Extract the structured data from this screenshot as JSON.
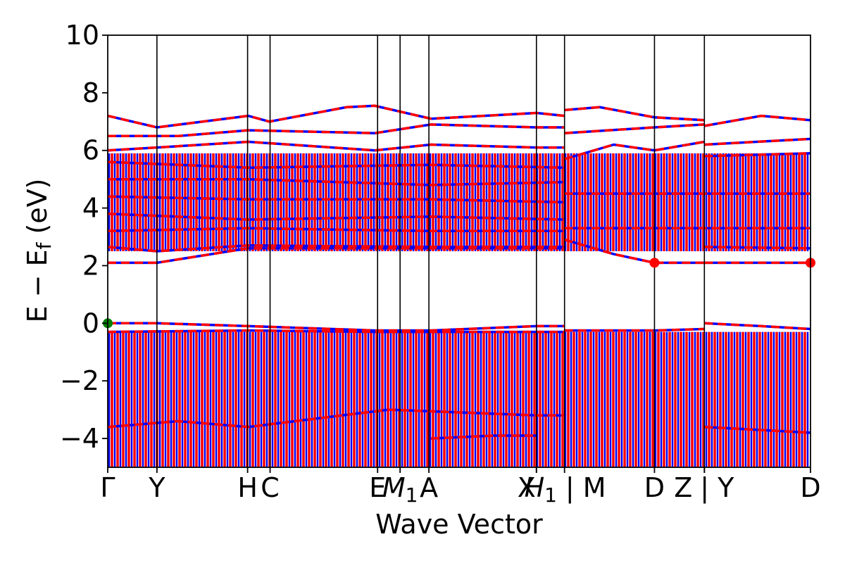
{
  "chart_data": {
    "type": "line",
    "xlabel": "Wave Vector",
    "ylabel_main": "E − E",
    "ylabel_sub": "f",
    "ylabel_unit": " (eV)",
    "ylim": [
      -5,
      10
    ],
    "yticks": [
      -4,
      -2,
      0,
      2,
      4,
      6,
      8,
      10
    ],
    "ytick_labels": [
      "−4",
      "−2",
      "0",
      "2",
      "4",
      "6",
      "8",
      "10"
    ],
    "xlim": [
      0,
      1
    ],
    "high_symmetry_points": [
      {
        "x": 0.0,
        "label": "Γ"
      },
      {
        "x": 0.07,
        "label": "Y"
      },
      {
        "x": 0.199,
        "label": "H"
      },
      {
        "x": 0.231,
        "label": "C"
      },
      {
        "x": 0.384,
        "label": "E"
      },
      {
        "x": 0.416,
        "label": "M",
        "sub": "1"
      },
      {
        "x": 0.457,
        "label": "A"
      },
      {
        "x": 0.61,
        "label": "X"
      },
      {
        "x": 0.61,
        "label": "H",
        "sub": "1"
      },
      {
        "x": 0.65,
        "label": "| M"
      },
      {
        "x": 0.778,
        "label": "D"
      },
      {
        "x": 0.849,
        "label": "Z"
      },
      {
        "x": 0.849,
        "label": "| Y"
      },
      {
        "x": 1.0,
        "label": "D"
      }
    ],
    "discontinuities": [
      0.65,
      0.849
    ],
    "conduction_band_min": {
      "x": [
        0.778,
        1.0
      ],
      "y": 2.1,
      "color": "#ff0000"
    },
    "valence_band_max": {
      "x": 0.0,
      "y": 0.0,
      "color": "#008000"
    },
    "valence_fill": {
      "y_min": -5,
      "y_max": -0.3
    },
    "conduction_fill": {
      "y_min": 2.5,
      "y_max": 5.9
    },
    "series": [
      {
        "color": "#0000ff",
        "style": "solid"
      },
      {
        "color": "#ff0000",
        "style": "dashed"
      }
    ],
    "bands": [
      [
        [
          0,
          0.0
        ],
        [
          0.07,
          0.0
        ],
        [
          0.2,
          -0.1
        ],
        [
          0.38,
          -0.25
        ],
        [
          0.46,
          -0.25
        ],
        [
          0.61,
          -0.1
        ],
        [
          0.65,
          -0.1
        ]
      ],
      [
        [
          0.65,
          -0.25
        ],
        [
          0.78,
          -0.25
        ],
        [
          0.849,
          -0.2
        ]
      ],
      [
        [
          0.849,
          0.0
        ],
        [
          0.93,
          -0.1
        ],
        [
          1.0,
          -0.2
        ]
      ],
      [
        [
          0,
          -0.3
        ],
        [
          0.2,
          -0.25
        ],
        [
          0.38,
          -0.3
        ],
        [
          0.61,
          -0.3
        ],
        [
          0.65,
          -0.3
        ]
      ],
      [
        [
          0,
          2.1
        ],
        [
          0.07,
          2.1
        ],
        [
          0.199,
          2.6
        ],
        [
          0.23,
          2.6
        ],
        [
          0.46,
          2.6
        ],
        [
          0.61,
          2.6
        ],
        [
          0.65,
          2.6
        ]
      ],
      [
        [
          0.65,
          2.9
        ],
        [
          0.72,
          2.4
        ],
        [
          0.778,
          2.1
        ],
        [
          0.849,
          2.1
        ]
      ],
      [
        [
          0.849,
          2.1
        ],
        [
          1.0,
          2.1
        ]
      ],
      [
        [
          0,
          2.65
        ],
        [
          0.07,
          2.5
        ],
        [
          0.199,
          2.7
        ],
        [
          0.46,
          2.65
        ],
        [
          0.65,
          2.65
        ]
      ],
      [
        [
          0.849,
          2.65
        ],
        [
          1.0,
          2.6
        ]
      ],
      [
        [
          0,
          3.2
        ],
        [
          0.2,
          3.3
        ],
        [
          0.46,
          3.2
        ],
        [
          0.65,
          3.2
        ]
      ],
      [
        [
          0.65,
          3.3
        ],
        [
          0.78,
          3.3
        ],
        [
          1.0,
          3.3
        ]
      ],
      [
        [
          0,
          3.8
        ],
        [
          0.2,
          3.6
        ],
        [
          0.46,
          3.7
        ],
        [
          0.65,
          3.6
        ]
      ],
      [
        [
          0,
          4.4
        ],
        [
          0.2,
          4.3
        ],
        [
          0.46,
          4.3
        ],
        [
          0.65,
          4.2
        ]
      ],
      [
        [
          0,
          5.0
        ],
        [
          0.2,
          5.0
        ],
        [
          0.46,
          4.8
        ],
        [
          0.65,
          4.9
        ]
      ],
      [
        [
          0,
          5.6
        ],
        [
          0.2,
          5.4
        ],
        [
          0.46,
          5.5
        ],
        [
          0.65,
          5.4
        ]
      ],
      [
        [
          0.65,
          4.5
        ],
        [
          0.78,
          4.5
        ],
        [
          1.0,
          4.5
        ]
      ],
      [
        [
          0,
          6.0
        ],
        [
          0.07,
          6.1
        ],
        [
          0.2,
          6.3
        ],
        [
          0.38,
          6.0
        ],
        [
          0.46,
          6.2
        ],
        [
          0.61,
          6.1
        ],
        [
          0.65,
          6.1
        ]
      ],
      [
        [
          0,
          6.5
        ],
        [
          0.1,
          6.5
        ],
        [
          0.2,
          6.7
        ],
        [
          0.38,
          6.6
        ],
        [
          0.46,
          6.9
        ],
        [
          0.61,
          6.8
        ],
        [
          0.65,
          6.8
        ]
      ],
      [
        [
          0,
          7.2
        ],
        [
          0.07,
          6.8
        ],
        [
          0.2,
          7.2
        ],
        [
          0.23,
          7.0
        ],
        [
          0.34,
          7.5
        ],
        [
          0.38,
          7.55
        ],
        [
          0.46,
          7.1
        ],
        [
          0.61,
          7.3
        ],
        [
          0.65,
          7.2
        ]
      ],
      [
        [
          0.65,
          7.4
        ],
        [
          0.7,
          7.5
        ],
        [
          0.778,
          7.15
        ],
        [
          0.849,
          7.05
        ]
      ],
      [
        [
          0.849,
          6.85
        ],
        [
          0.93,
          7.2
        ],
        [
          1.0,
          7.05
        ]
      ],
      [
        [
          0.65,
          5.7
        ],
        [
          0.72,
          6.2
        ],
        [
          0.778,
          6.0
        ],
        [
          0.849,
          6.3
        ]
      ],
      [
        [
          0.65,
          6.6
        ],
        [
          0.778,
          6.8
        ],
        [
          0.849,
          6.9
        ]
      ],
      [
        [
          0.849,
          6.2
        ],
        [
          1.0,
          6.4
        ]
      ],
      [
        [
          0.849,
          5.8
        ],
        [
          1.0,
          5.9
        ]
      ],
      [
        [
          0,
          -3.6
        ],
        [
          0.1,
          -3.4
        ],
        [
          0.2,
          -3.6
        ],
        [
          0.4,
          -3.0
        ],
        [
          0.61,
          -3.2
        ],
        [
          0.65,
          -3.2
        ]
      ],
      [
        [
          0.46,
          -4.0
        ],
        [
          0.55,
          -3.9
        ],
        [
          0.61,
          -3.9
        ]
      ],
      [
        [
          0.849,
          -3.6
        ],
        [
          1.0,
          -3.8
        ]
      ]
    ]
  }
}
